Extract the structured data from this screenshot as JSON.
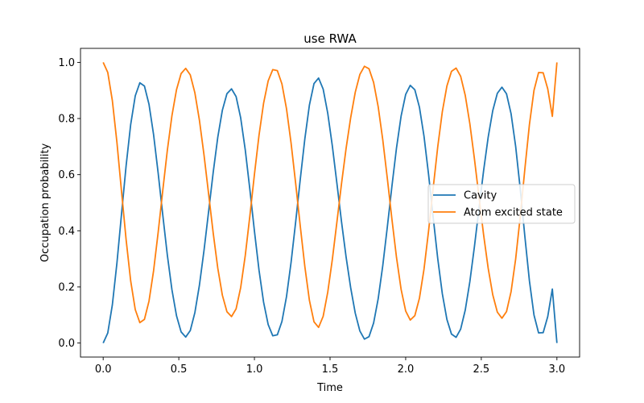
{
  "chart_data": {
    "type": "line",
    "title": "use RWA",
    "xlabel": "Time",
    "ylabel": "Occupation probability",
    "xlim": [
      -0.15,
      3.15
    ],
    "ylim": [
      -0.05,
      1.05
    ],
    "xticks": [
      "0.0",
      "0.5",
      "1.0",
      "1.5",
      "2.0",
      "2.5",
      "3.0"
    ],
    "yticks": [
      "0.0",
      "0.2",
      "0.4",
      "0.6",
      "0.8",
      "1.0"
    ],
    "grid": false,
    "legend_position": "center-right",
    "x": [
      0.0,
      0.0303,
      0.0606,
      0.0909,
      0.1212,
      0.1515,
      0.1818,
      0.2121,
      0.2424,
      0.2727,
      0.303,
      0.3333,
      0.3636,
      0.3939,
      0.4242,
      0.4545,
      0.4848,
      0.5152,
      0.5455,
      0.5758,
      0.6061,
      0.6364,
      0.6667,
      0.697,
      0.7273,
      0.7576,
      0.7879,
      0.8182,
      0.8485,
      0.8788,
      0.9091,
      0.9394,
      0.9697,
      1.0,
      1.0303,
      1.0606,
      1.0909,
      1.1212,
      1.1515,
      1.1818,
      1.2121,
      1.2424,
      1.2727,
      1.303,
      1.3333,
      1.3636,
      1.3939,
      1.4242,
      1.4545,
      1.4848,
      1.5152,
      1.5455,
      1.5758,
      1.6061,
      1.6364,
      1.6667,
      1.697,
      1.7273,
      1.7576,
      1.7879,
      1.8182,
      1.8485,
      1.8788,
      1.9091,
      1.9394,
      1.9697,
      2.0,
      2.0303,
      2.0606,
      2.0909,
      2.1212,
      2.1515,
      2.1818,
      2.2121,
      2.2424,
      2.2727,
      2.303,
      2.3333,
      2.3636,
      2.3939,
      2.4242,
      2.4545,
      2.4848,
      2.5152,
      2.5455,
      2.5758,
      2.6061,
      2.6364,
      2.6667,
      2.697,
      2.7273,
      2.7576,
      2.7879,
      2.8182,
      2.8485,
      2.8788,
      2.9091,
      2.9394,
      2.9697,
      3.0
    ],
    "series": [
      {
        "name": "Cavity",
        "color": "#1f77b4",
        "values": [
          0.0,
          0.0358,
          0.1362,
          0.2852,
          0.4594,
          0.6314,
          0.7787,
          0.8809,
          0.9273,
          0.9157,
          0.8505,
          0.7422,
          0.6052,
          0.4566,
          0.3132,
          0.1901,
          0.0971,
          0.0398,
          0.0213,
          0.0444,
          0.1082,
          0.2065,
          0.3303,
          0.4685,
          0.6076,
          0.733,
          0.8294,
          0.8883,
          0.9057,
          0.8781,
          0.8023,
          0.6882,
          0.5478,
          0.3991,
          0.2598,
          0.1453,
          0.0658,
          0.0258,
          0.0292,
          0.0767,
          0.1654,
          0.2878,
          0.4318,
          0.5831,
          0.7275,
          0.8482,
          0.9246,
          0.9442,
          0.9048,
          0.8188,
          0.7018,
          0.5683,
          0.4322,
          0.3065,
          0.1968,
          0.1064,
          0.0433,
          0.0139,
          0.0226,
          0.0711,
          0.1576,
          0.2757,
          0.414,
          0.5587,
          0.6951,
          0.8085,
          0.8859,
          0.9181,
          0.9024,
          0.8405,
          0.737,
          0.6001,
          0.4479,
          0.3005,
          0.1755,
          0.0841,
          0.0317,
          0.0203,
          0.0497,
          0.1173,
          0.2182,
          0.3432,
          0.4795,
          0.6137,
          0.7333,
          0.8282,
          0.8899,
          0.9116,
          0.8881,
          0.8168,
          0.7004,
          0.5488,
          0.3807,
          0.2217,
          0.0997,
          0.0361,
          0.037,
          0.0943,
          0.1924,
          0.0
        ]
      },
      {
        "name": "Atom excited state",
        "color": "#ff7f0e",
        "values": [
          1.0,
          0.9642,
          0.8638,
          0.7148,
          0.5406,
          0.3686,
          0.2213,
          0.1191,
          0.0727,
          0.0843,
          0.1495,
          0.2578,
          0.3948,
          0.5434,
          0.6868,
          0.8099,
          0.9029,
          0.9602,
          0.9787,
          0.9556,
          0.8918,
          0.7935,
          0.6697,
          0.5315,
          0.3924,
          0.267,
          0.1706,
          0.1117,
          0.0943,
          0.1219,
          0.1977,
          0.3118,
          0.4522,
          0.6009,
          0.7402,
          0.8547,
          0.9342,
          0.9742,
          0.9708,
          0.9233,
          0.8346,
          0.7122,
          0.5682,
          0.4169,
          0.2725,
          0.1518,
          0.0754,
          0.0558,
          0.0952,
          0.1812,
          0.2982,
          0.4317,
          0.5678,
          0.6935,
          0.8032,
          0.8936,
          0.9567,
          0.9861,
          0.9774,
          0.9289,
          0.8424,
          0.7243,
          0.586,
          0.4413,
          0.3049,
          0.1915,
          0.1141,
          0.0819,
          0.0976,
          0.1595,
          0.263,
          0.3999,
          0.5521,
          0.6995,
          0.8245,
          0.9159,
          0.9683,
          0.9797,
          0.9503,
          0.8827,
          0.7818,
          0.6568,
          0.5205,
          0.3863,
          0.2667,
          0.1718,
          0.1101,
          0.0884,
          0.1119,
          0.1832,
          0.2996,
          0.4512,
          0.6193,
          0.7783,
          0.9003,
          0.9639,
          0.963,
          0.9057,
          0.8076,
          1.0
        ]
      }
    ]
  }
}
